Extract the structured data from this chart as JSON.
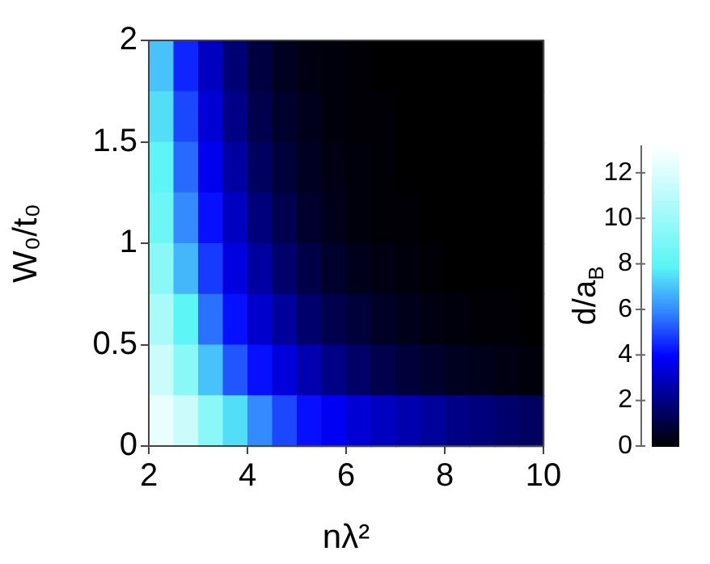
{
  "chart_data": {
    "type": "heatmap",
    "xlabel": "nλ²",
    "ylabel": "W₀/t₀",
    "clabel": "d/a$_{B}$",
    "x": [
      2.25,
      2.75,
      3.25,
      3.75,
      4.25,
      4.75,
      5.25,
      5.75,
      6.25,
      6.75,
      7.25,
      7.75,
      8.25,
      8.75,
      9.25,
      9.75
    ],
    "y": [
      1.875,
      1.625,
      1.375,
      1.125,
      0.875,
      0.625,
      0.375,
      0.125
    ],
    "cells": [
      [
        7,
        4.5,
        3,
        1.8,
        1,
        0.5,
        0.3,
        0.2,
        0.1,
        0,
        0,
        0,
        0,
        0,
        0,
        0
      ],
      [
        7.5,
        5,
        3.3,
        2.1,
        1.2,
        0.7,
        0.4,
        0.2,
        0.1,
        0.1,
        0,
        0,
        0,
        0,
        0,
        0
      ],
      [
        8,
        5.5,
        3.7,
        2.5,
        1.5,
        0.9,
        0.5,
        0.3,
        0.2,
        0.1,
        0,
        0,
        0,
        0,
        0,
        0
      ],
      [
        8.5,
        6,
        4.2,
        3,
        1.9,
        1.2,
        0.7,
        0.4,
        0.2,
        0.1,
        0.1,
        0,
        0,
        0,
        0,
        0
      ],
      [
        9.5,
        6.8,
        4.8,
        3.5,
        2.5,
        1.7,
        1.1,
        0.7,
        0.4,
        0.3,
        0.2,
        0.1,
        0,
        0,
        0,
        0
      ],
      [
        10.5,
        8,
        5.6,
        4.2,
        3.2,
        2.4,
        1.7,
        1.2,
        0.9,
        0.6,
        0.4,
        0.3,
        0.2,
        0.1,
        0.1,
        0
      ],
      [
        11.5,
        9.5,
        7,
        5.2,
        4.2,
        3.4,
        2.7,
        2.1,
        1.6,
        1.2,
        0.9,
        0.7,
        0.5,
        0.4,
        0.3,
        0.2
      ],
      [
        12.5,
        11.5,
        9.5,
        7.5,
        6,
        5,
        4.2,
        3.8,
        3.3,
        3,
        2.7,
        2.4,
        2.1,
        1.9,
        1.7,
        1.5
      ]
    ],
    "xlim": [
      2,
      10
    ],
    "xticks": [
      2,
      4,
      6,
      8,
      10
    ],
    "ylim": [
      0,
      2
    ],
    "yticks": [
      0,
      0.5,
      1,
      1.5,
      2
    ],
    "clim": [
      0,
      13.2
    ],
    "cticks": [
      0,
      2,
      4,
      6,
      8,
      10,
      12
    ]
  }
}
